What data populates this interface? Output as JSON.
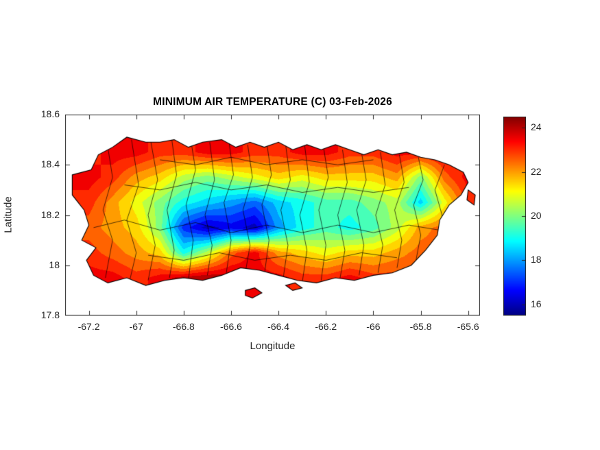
{
  "figure": {
    "background": "#ffffff",
    "axis_color": "#262626"
  },
  "chart_data": {
    "type": "heatmap",
    "title": "MINIMUM AIR TEMPERATURE (C) 03-Feb-2026",
    "xlabel": "Longitude",
    "ylabel": "Latitude",
    "xlim": [
      -67.3,
      -65.55
    ],
    "ylim": [
      17.8,
      18.6
    ],
    "xtick_values": [
      -67.2,
      -67,
      -66.8,
      -66.6,
      -66.4,
      -66.2,
      -66,
      -65.8,
      -65.6
    ],
    "xtick_labels": [
      "-67.2",
      "-67",
      "-66.8",
      "-66.6",
      "-66.4",
      "-66.2",
      "-66",
      "-65.8",
      "-65.6"
    ],
    "ytick_values": [
      17.8,
      18,
      18.2,
      18.4,
      18.6
    ],
    "ytick_labels": [
      "17.8",
      "18",
      "18.2",
      "18.4",
      "18.6"
    ],
    "colormap": "jet",
    "clim": [
      15.5,
      24.5
    ],
    "contour_step": 0.5,
    "colorbar": {
      "tick_values": [
        16,
        18,
        20,
        22,
        24
      ],
      "tick_labels": [
        "16",
        "18",
        "20",
        "22",
        "24"
      ]
    },
    "grid": {
      "lon": [
        -67.2,
        -67.1,
        -67.0,
        -66.9,
        -66.8,
        -66.7,
        -66.6,
        -66.5,
        -66.4,
        -66.3,
        -66.2,
        -66.1,
        -66.0,
        -65.9,
        -65.8,
        -65.7,
        -65.6
      ],
      "lat": [
        17.95,
        18.05,
        18.15,
        18.25,
        18.35,
        18.45
      ],
      "values_by_lat": [
        [
          23.5,
          23.5,
          23.0,
          23.5,
          24.0,
          24.2,
          24.0,
          23.5,
          23.5,
          23.0,
          23.0,
          23.5,
          23.0,
          23.0,
          22.5,
          null,
          null
        ],
        [
          23.0,
          22.5,
          22.0,
          21.5,
          19.0,
          20.5,
          22.5,
          23.5,
          22.0,
          21.5,
          21.0,
          21.5,
          21.5,
          22.0,
          22.5,
          22.5,
          null
        ],
        [
          22.5,
          22.0,
          21.5,
          20.0,
          17.0,
          16.0,
          16.5,
          16.0,
          18.0,
          19.0,
          19.5,
          19.0,
          19.5,
          20.5,
          22.0,
          22.5,
          null
        ],
        [
          23.0,
          22.0,
          21.0,
          20.0,
          19.0,
          18.5,
          18.0,
          17.5,
          18.5,
          19.0,
          19.5,
          19.5,
          20.0,
          20.5,
          18.5,
          21.0,
          23.0
        ],
        [
          23.5,
          23.0,
          22.0,
          21.5,
          20.5,
          20.0,
          20.5,
          21.0,
          21.5,
          21.0,
          21.5,
          21.5,
          21.5,
          22.0,
          20.0,
          22.5,
          23.5
        ],
        [
          23.0,
          23.5,
          23.5,
          23.0,
          23.0,
          23.5,
          23.5,
          23.0,
          23.0,
          23.5,
          23.5,
          23.0,
          23.0,
          23.5,
          23.5,
          23.5,
          23.0
        ]
      ]
    },
    "coastline": [
      [
        -67.27,
        18.36
      ],
      [
        -67.19,
        18.38
      ],
      [
        -67.16,
        18.44
      ],
      [
        -67.1,
        18.47
      ],
      [
        -67.04,
        18.51
      ],
      [
        -66.96,
        18.49
      ],
      [
        -66.9,
        18.49
      ],
      [
        -66.84,
        18.5
      ],
      [
        -66.78,
        18.47
      ],
      [
        -66.72,
        18.49
      ],
      [
        -66.64,
        18.5
      ],
      [
        -66.58,
        18.47
      ],
      [
        -66.52,
        18.49
      ],
      [
        -66.46,
        18.47
      ],
      [
        -66.4,
        18.49
      ],
      [
        -66.34,
        18.46
      ],
      [
        -66.28,
        18.48
      ],
      [
        -66.22,
        18.46
      ],
      [
        -66.16,
        18.48
      ],
      [
        -66.1,
        18.46
      ],
      [
        -66.04,
        18.44
      ],
      [
        -65.98,
        18.46
      ],
      [
        -65.92,
        18.44
      ],
      [
        -65.86,
        18.45
      ],
      [
        -65.8,
        18.43
      ],
      [
        -65.74,
        18.42
      ],
      [
        -65.68,
        18.4
      ],
      [
        -65.62,
        18.37
      ],
      [
        -65.6,
        18.33
      ],
      [
        -65.63,
        18.28
      ],
      [
        -65.68,
        18.24
      ],
      [
        -65.72,
        18.18
      ],
      [
        -65.73,
        18.12
      ],
      [
        -65.78,
        18.06
      ],
      [
        -65.84,
        18.0
      ],
      [
        -65.92,
        17.97
      ],
      [
        -66.0,
        17.96
      ],
      [
        -66.08,
        17.94
      ],
      [
        -66.16,
        17.95
      ],
      [
        -66.24,
        17.93
      ],
      [
        -66.32,
        17.94
      ],
      [
        -66.4,
        17.96
      ],
      [
        -66.48,
        17.98
      ],
      [
        -66.56,
        17.99
      ],
      [
        -66.64,
        17.96
      ],
      [
        -66.72,
        17.94
      ],
      [
        -66.8,
        17.95
      ],
      [
        -66.88,
        17.94
      ],
      [
        -66.96,
        17.92
      ],
      [
        -67.04,
        17.95
      ],
      [
        -67.12,
        17.93
      ],
      [
        -67.18,
        17.96
      ],
      [
        -67.21,
        18.02
      ],
      [
        -67.17,
        18.07
      ],
      [
        -67.23,
        18.1
      ],
      [
        -67.2,
        18.16
      ],
      [
        -67.22,
        18.22
      ],
      [
        -67.27,
        18.28
      ]
    ],
    "islets": [
      [
        [
          -66.54,
          17.9
        ],
        [
          -66.5,
          17.91
        ],
        [
          -66.47,
          17.89
        ],
        [
          -66.51,
          17.87
        ],
        [
          -66.54,
          17.88
        ]
      ],
      [
        [
          -66.37,
          17.92
        ],
        [
          -66.33,
          17.93
        ],
        [
          -66.3,
          17.91
        ],
        [
          -66.34,
          17.9
        ]
      ],
      [
        [
          -65.6,
          18.3
        ],
        [
          -65.57,
          18.28
        ],
        [
          -65.575,
          18.24
        ],
        [
          -65.605,
          18.26
        ]
      ]
    ],
    "municipal_boundaries": [
      [
        [
          -67.13,
          17.95
        ],
        [
          -67.1,
          18.1
        ],
        [
          -67.14,
          18.22
        ],
        [
          -67.1,
          18.35
        ],
        [
          -67.12,
          18.47
        ]
      ],
      [
        [
          -67.03,
          17.93
        ],
        [
          -67.0,
          18.05
        ],
        [
          -67.04,
          18.18
        ],
        [
          -66.99,
          18.32
        ],
        [
          -67.02,
          18.5
        ]
      ],
      [
        [
          -66.95,
          17.94
        ],
        [
          -66.92,
          18.08
        ],
        [
          -66.95,
          18.2
        ],
        [
          -66.91,
          18.34
        ],
        [
          -66.94,
          18.5
        ]
      ],
      [
        [
          -66.86,
          17.95
        ],
        [
          -66.84,
          18.06
        ],
        [
          -66.87,
          18.22
        ],
        [
          -66.83,
          18.36
        ],
        [
          -66.85,
          18.5
        ]
      ],
      [
        [
          -66.78,
          17.94
        ],
        [
          -66.76,
          18.1
        ],
        [
          -66.79,
          18.24
        ],
        [
          -66.75,
          18.38
        ],
        [
          -66.77,
          18.5
        ]
      ],
      [
        [
          -66.7,
          17.96
        ],
        [
          -66.68,
          18.08
        ],
        [
          -66.71,
          18.2
        ],
        [
          -66.67,
          18.34
        ],
        [
          -66.69,
          18.49
        ]
      ],
      [
        [
          -66.62,
          17.97
        ],
        [
          -66.6,
          18.1
        ],
        [
          -66.63,
          18.25
        ],
        [
          -66.59,
          18.36
        ],
        [
          -66.61,
          18.5
        ]
      ],
      [
        [
          -66.54,
          17.97
        ],
        [
          -66.52,
          18.08
        ],
        [
          -66.55,
          18.22
        ],
        [
          -66.51,
          18.35
        ],
        [
          -66.53,
          18.48
        ]
      ],
      [
        [
          -66.46,
          17.96
        ],
        [
          -66.44,
          18.1
        ],
        [
          -66.47,
          18.24
        ],
        [
          -66.43,
          18.36
        ],
        [
          -66.45,
          18.49
        ]
      ],
      [
        [
          -66.38,
          17.95
        ],
        [
          -66.36,
          18.08
        ],
        [
          -66.39,
          18.22
        ],
        [
          -66.35,
          18.34
        ],
        [
          -66.37,
          18.48
        ]
      ],
      [
        [
          -66.3,
          17.93
        ],
        [
          -66.28,
          18.06
        ],
        [
          -66.31,
          18.2
        ],
        [
          -66.27,
          18.33
        ],
        [
          -66.29,
          18.48
        ]
      ],
      [
        [
          -66.22,
          17.94
        ],
        [
          -66.2,
          18.08
        ],
        [
          -66.23,
          18.22
        ],
        [
          -66.19,
          18.35
        ],
        [
          -66.21,
          18.47
        ]
      ],
      [
        [
          -66.14,
          17.95
        ],
        [
          -66.12,
          18.06
        ],
        [
          -66.15,
          18.2
        ],
        [
          -66.11,
          18.33
        ],
        [
          -66.13,
          18.46
        ]
      ],
      [
        [
          -66.06,
          17.96
        ],
        [
          -66.04,
          18.08
        ],
        [
          -66.07,
          18.22
        ],
        [
          -66.03,
          18.34
        ],
        [
          -66.05,
          18.45
        ]
      ],
      [
        [
          -65.98,
          17.97
        ],
        [
          -65.96,
          18.08
        ],
        [
          -65.99,
          18.2
        ],
        [
          -65.95,
          18.32
        ],
        [
          -65.97,
          18.45
        ]
      ],
      [
        [
          -65.9,
          17.99
        ],
        [
          -65.88,
          18.1
        ],
        [
          -65.91,
          18.22
        ],
        [
          -65.87,
          18.33
        ],
        [
          -65.89,
          18.44
        ]
      ],
      [
        [
          -65.82,
          18.02
        ],
        [
          -65.8,
          18.12
        ],
        [
          -65.83,
          18.24
        ],
        [
          -65.79,
          18.34
        ],
        [
          -65.81,
          18.43
        ]
      ],
      [
        [
          -65.73,
          18.1
        ],
        [
          -65.71,
          18.2
        ],
        [
          -65.74,
          18.3
        ],
        [
          -65.7,
          18.4
        ]
      ],
      [
        [
          -67.18,
          18.15
        ],
        [
          -67.05,
          18.18
        ],
        [
          -66.9,
          18.14
        ],
        [
          -66.75,
          18.17
        ],
        [
          -66.6,
          18.13
        ],
        [
          -66.45,
          18.16
        ],
        [
          -66.3,
          18.13
        ],
        [
          -66.15,
          18.16
        ],
        [
          -66.0,
          18.13
        ],
        [
          -65.85,
          18.16
        ],
        [
          -65.72,
          18.14
        ]
      ],
      [
        [
          -67.05,
          18.32
        ],
        [
          -66.9,
          18.3
        ],
        [
          -66.75,
          18.33
        ],
        [
          -66.6,
          18.3
        ],
        [
          -66.45,
          18.32
        ],
        [
          -66.3,
          18.29
        ],
        [
          -66.15,
          18.31
        ],
        [
          -66.0,
          18.29
        ],
        [
          -65.85,
          18.31
        ]
      ],
      [
        [
          -66.95,
          18.04
        ],
        [
          -66.8,
          18.02
        ],
        [
          -66.65,
          18.05
        ],
        [
          -66.5,
          18.02
        ],
        [
          -66.35,
          18.04
        ],
        [
          -66.2,
          18.02
        ],
        [
          -66.05,
          18.05
        ],
        [
          -65.9,
          18.03
        ]
      ],
      [
        [
          -66.9,
          18.42
        ],
        [
          -66.75,
          18.4
        ],
        [
          -66.6,
          18.43
        ],
        [
          -66.45,
          18.4
        ],
        [
          -66.3,
          18.42
        ],
        [
          -66.15,
          18.4
        ],
        [
          -66.0,
          18.42
        ]
      ]
    ]
  }
}
